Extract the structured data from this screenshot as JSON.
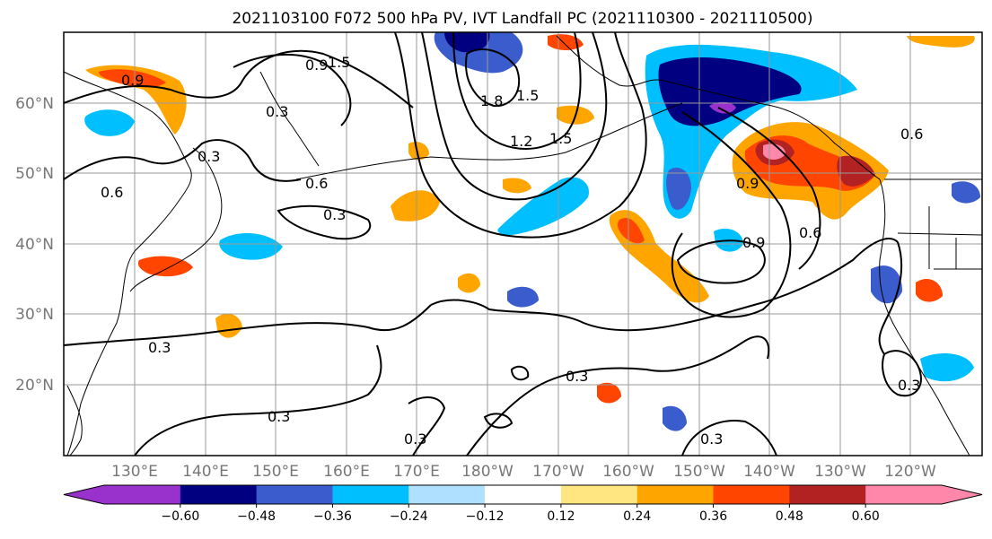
{
  "title": "2021103100 F072 500 hPa PV, IVT Landfall PC (2021110300 - 2021110500)",
  "lat_labels": [
    "60°N",
    "50°N",
    "40°N",
    "30°N",
    "20°N"
  ],
  "lon_labels": [
    "130°E",
    "140°E",
    "150°E",
    "160°E",
    "170°E",
    "180°W",
    "170°W",
    "160°W",
    "150°W",
    "140°W",
    "130°W",
    "120°W"
  ],
  "colorbar": {
    "colors": [
      "#9932cc",
      "#000080",
      "#3a5ccc",
      "#00bfff",
      "#b0e0ff",
      "#ffffff",
      "#ffe680",
      "#ffa500",
      "#ff4500",
      "#b22222",
      "#ff88aa"
    ],
    "tick_labels": [
      "−0.60",
      "−0.48",
      "−0.36",
      "−0.24",
      "−0.12",
      "0.12",
      "0.24",
      "0.36",
      "0.48",
      "0.60"
    ]
  },
  "contour_labels": [
    "1.5",
    "0.9",
    "0.3",
    "1.8",
    "1.5",
    "1.2",
    "1.5",
    "0.9",
    "0.6",
    "0.3",
    "0.3",
    "0.3",
    "0.3",
    "0.3",
    "0.3",
    "0.9",
    "0.6",
    "0.9",
    "0.6",
    "0.3",
    "0.3",
    "0.6"
  ]
}
